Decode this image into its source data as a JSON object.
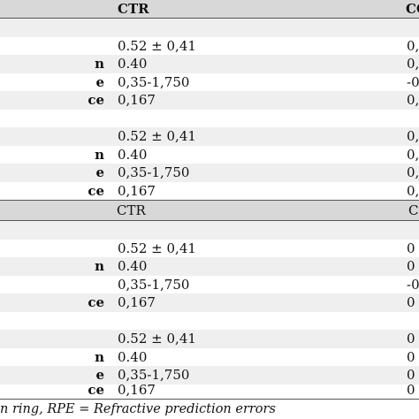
{
  "table": {
    "header1": {
      "c2": "CTR",
      "c3": "CO"
    },
    "header2": {
      "c2": "CTR",
      "c3": "C"
    },
    "block1": [
      {
        "c1": "",
        "c2": "",
        "c3": ""
      },
      {
        "c1": "",
        "c2": "0.52 ± 0,41",
        "c3": "0,"
      },
      {
        "c1": "n",
        "c2": "0.40",
        "c3": "0,"
      },
      {
        "c1": "e",
        "c2": "0,35-1,750",
        "c3": "-0"
      },
      {
        "c1": "ce",
        "c2": "0,167",
        "c3": "0,"
      },
      {
        "c1": "",
        "c2": "",
        "c3": ""
      },
      {
        "c1": "",
        "c2": "0.52 ± 0,41",
        "c3": "0,"
      },
      {
        "c1": "n",
        "c2": "0.40",
        "c3": "0,"
      },
      {
        "c1": "e",
        "c2": "0,35-1,750",
        "c3": "0,"
      },
      {
        "c1": "ce",
        "c2": "0,167",
        "c3": "0,"
      }
    ],
    "block2": [
      {
        "c1": "",
        "c2": "",
        "c3": ""
      },
      {
        "c1": "",
        "c2": "0.52 ± 0,41",
        "c3": "0"
      },
      {
        "c1": "n",
        "c2": "0.40",
        "c3": "0"
      },
      {
        "c1": "",
        "c2": "0,35-1,750",
        "c3": "-0"
      },
      {
        "c1": "ce",
        "c2": "0,167",
        "c3": "0"
      },
      {
        "c1": "",
        "c2": "",
        "c3": ""
      },
      {
        "c1": "",
        "c2": "0.52 ± 0,41",
        "c3": "0"
      },
      {
        "c1": "n",
        "c2": "0.40",
        "c3": "0"
      },
      {
        "c1": "e",
        "c2": "0,35-1,750",
        "c3": "0"
      },
      {
        "c1": "ce",
        "c2": "0,167",
        "c3": "0"
      }
    ]
  },
  "footer": {
    "text": "n ring, RPE = Refractive prediction errors"
  }
}
